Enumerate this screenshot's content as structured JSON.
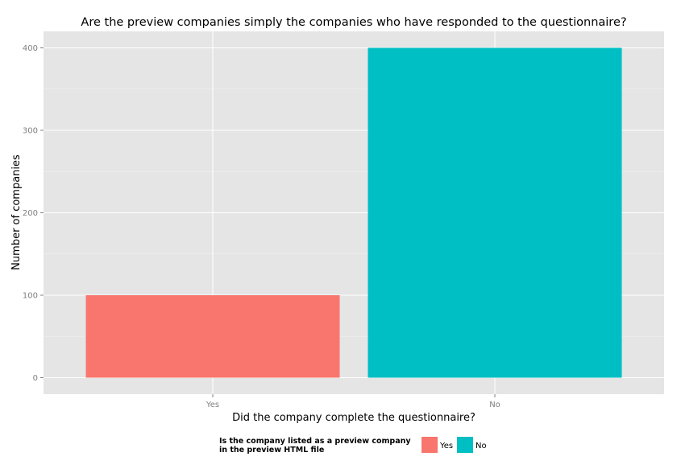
{
  "chart_data": {
    "type": "bar",
    "title": "Are the preview companies simply the companies who have responded to the questionnaire?",
    "xlabel": "Did the company complete the questionnaire?",
    "ylabel": "Number of companies",
    "categories": [
      "Yes",
      "No"
    ],
    "values": [
      100,
      400
    ],
    "ylim": [
      -20,
      420
    ],
    "yticks": [
      0,
      100,
      200,
      300,
      400
    ],
    "grid": true,
    "legend": {
      "title_line1": "Is the company listed as a preview company",
      "title_line2": "in the preview HTML file",
      "position": "bottom",
      "entries": [
        {
          "label": "Yes",
          "color": "#F8766D"
        },
        {
          "label": "No",
          "color": "#00BFC4"
        }
      ]
    },
    "colors": {
      "panel": "#E5E5E5",
      "grid_major": "#FFFFFF",
      "grid_minor": "#F2F2F2"
    }
  }
}
